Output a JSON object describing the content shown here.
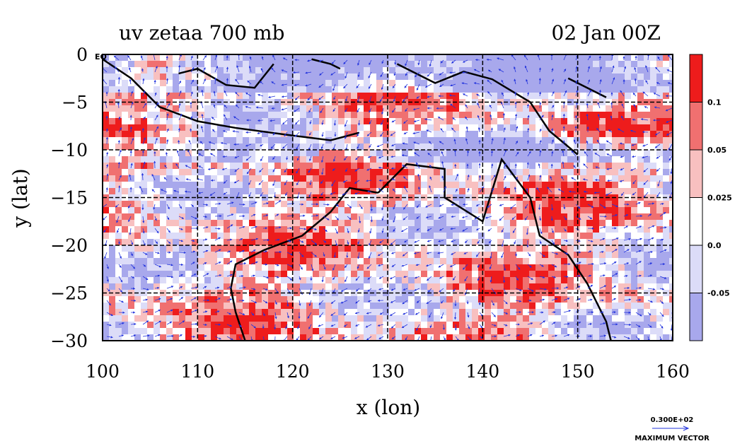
{
  "chart_data": {
    "type": "heatmap",
    "title_left": "uv zetaa 700 mb",
    "title_right": "02 Jan 00Z",
    "xlabel": "x (lon)",
    "ylabel": "y (lat)",
    "x_ticks": [
      100,
      110,
      120,
      130,
      140,
      150,
      160
    ],
    "y_ticks": [
      0,
      -5,
      -10,
      -15,
      -20,
      -25,
      -30
    ],
    "xlim": [
      100,
      160
    ],
    "ylim": [
      -30,
      0
    ],
    "grid": true,
    "corner_label": "EQ",
    "colorbar": {
      "levels": [
        "0.1",
        "0.05",
        "0.025",
        "0.0",
        "-0.05"
      ],
      "colors": [
        "#ee1c1c",
        "#f07070",
        "#f8c0c0",
        "#ffffff",
        "#dcdcf8",
        "#a8a8ec"
      ]
    },
    "vector_legend": {
      "value": "0.300E+02",
      "label": "MAXIMUM VECTOR"
    }
  }
}
